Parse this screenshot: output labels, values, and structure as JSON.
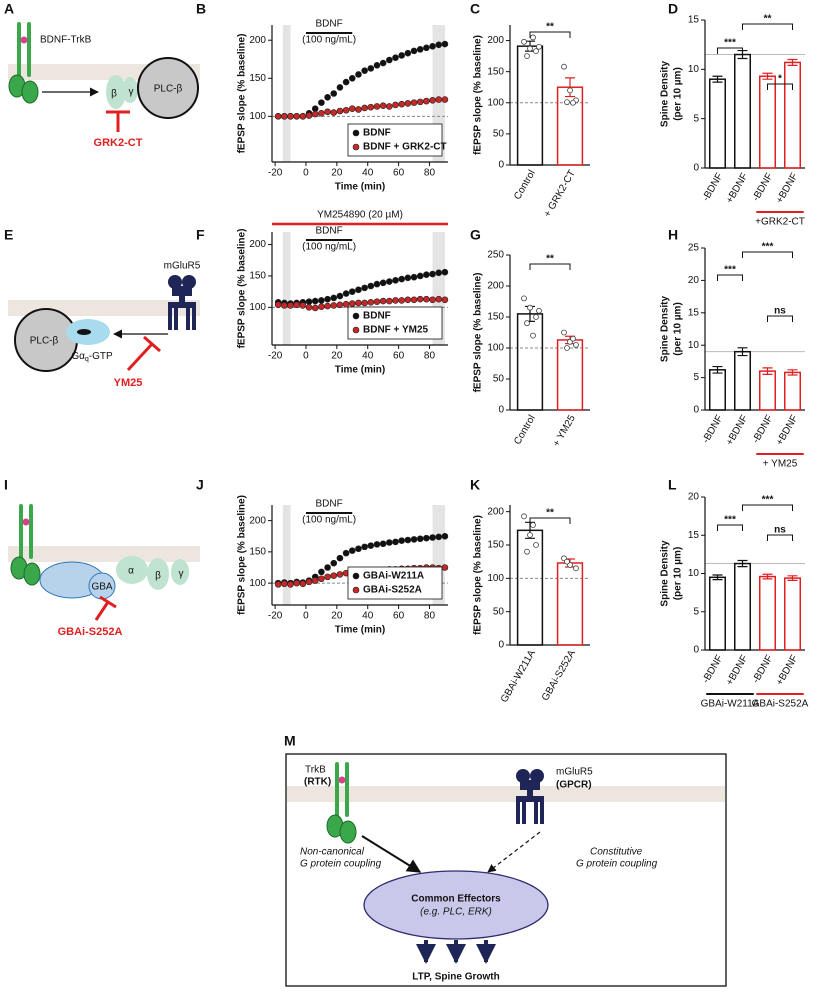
{
  "diagrams": {
    "A": {
      "panel": "A",
      "receptor": "BDNF-TrkB",
      "beta": "β",
      "gamma": "γ",
      "effector": "PLC-β",
      "inhibitor": "GRK2-CT"
    },
    "E": {
      "panel": "E",
      "receptor": "mGluR5",
      "effector": "PLC-β",
      "g_protein": "Gα",
      "g_protein_sub": "q",
      "g_protein_suffix": "-GTP",
      "inhibitor": "YM25"
    },
    "I": {
      "panel": "I",
      "alpha": "α",
      "beta": "β",
      "gamma": "γ",
      "gba": "GBA",
      "inhibitor": "GBAi-S252A"
    },
    "M": {
      "panel": "M",
      "rtk_name": "TrkB",
      "rtk_class": "(RTK)",
      "gpcr_name": "mGluR5",
      "gpcr_class": "(GPCR)",
      "left_path": [
        "Non-canonical",
        "G protein coupling"
      ],
      "right_path": [
        "Constitutive",
        "G protein coupling"
      ],
      "effectors": "Common Effectors",
      "effectors_example": "(e.g. PLC, ERK)",
      "outcome": "LTP, Spine Growth"
    }
  },
  "chart_data": [
    {
      "type": "scatter",
      "panel": "B",
      "annotation": "BDNF",
      "annotation2": "(100 ng/mL)",
      "drug_bar": [
        0,
        30
      ],
      "shaded_x": [
        [
          -15,
          -10
        ],
        [
          82,
          90
        ]
      ],
      "ref_line": 100,
      "xlabel": "Time (min)",
      "ylabel": "fEPSP slope (% baseline)",
      "xlim": [
        -22,
        92
      ],
      "xticks": [
        -20,
        0,
        20,
        40,
        60,
        80
      ],
      "ylim": [
        40,
        220
      ],
      "yticks": [
        100,
        150,
        200
      ],
      "legend": "lower right",
      "x": [
        -18,
        -14,
        -10,
        -6,
        -2,
        2,
        6,
        10,
        14,
        18,
        22,
        26,
        30,
        34,
        38,
        42,
        46,
        50,
        54,
        58,
        62,
        66,
        70,
        74,
        78,
        82,
        86,
        90
      ],
      "series": [
        {
          "name": "BDNF",
          "color": "#111111",
          "values": [
            100,
            100,
            100,
            100,
            100,
            104,
            110,
            118,
            125,
            130,
            138,
            145,
            150,
            155,
            160,
            163,
            167,
            170,
            174,
            177,
            180,
            183,
            186,
            188,
            190,
            192,
            194,
            195
          ]
        },
        {
          "name": "BDNF + GRK2-CT",
          "color": "#c62828",
          "values": [
            100,
            100,
            100,
            100,
            100,
            101,
            103,
            104,
            106,
            105,
            107,
            108,
            110,
            109,
            111,
            112,
            113,
            114,
            113,
            115,
            116,
            117,
            118,
            119,
            120,
            121,
            122,
            122
          ]
        }
      ]
    },
    {
      "type": "bar",
      "panel": "C",
      "categories": [
        "Control",
        "+ GRK2-CT"
      ],
      "values": [
        191,
        125
      ],
      "errors": [
        8,
        15
      ],
      "points": [
        [
          198,
          187,
          183,
          175,
          205,
          190
        ],
        [
          158,
          120,
          104,
          101,
          100
        ]
      ],
      "colors": [
        "#111111",
        "#e02020"
      ],
      "ylabel": [
        "fEPSP slope (% baseline)"
      ],
      "ylim": [
        0,
        225
      ],
      "yticks": [
        0,
        50,
        100,
        150,
        200
      ],
      "ref_line": 100,
      "significance": [
        "**"
      ]
    },
    {
      "type": "bar",
      "panel": "D",
      "categories": [
        "-BDNF",
        "+BDNF",
        "-BDNF",
        "+BDNF"
      ],
      "values": [
        9.0,
        11.5,
        9.3,
        10.7
      ],
      "errors": [
        0.3,
        0.4,
        0.3,
        0.3
      ],
      "colors": [
        "#111111",
        "#111111",
        "#e02020",
        "#e02020"
      ],
      "ylabel": [
        "Spine Density",
        "(per 10 µm)"
      ],
      "ylim": [
        0,
        15
      ],
      "yticks": [
        0,
        5,
        10,
        15
      ],
      "ref_line": 11.5,
      "significance": [
        "***",
        "**",
        "*"
      ],
      "group_labels": [
        "+GRK2-CT"
      ]
    },
    {
      "type": "scatter",
      "panel": "F",
      "annotation": "BDNF",
      "annotation2": "(100 ng/mL)",
      "drug_bar": [
        0,
        30
      ],
      "shaded_x": [
        [
          -15,
          -10
        ],
        [
          82,
          90
        ]
      ],
      "ref_line": 100,
      "top_bar": {
        "label": "YM254890  (20 µM)",
        "range": [
          -22,
          92
        ],
        "color": "#e02020"
      },
      "xlabel": "Time (min)",
      "ylabel": "fEPSP slope (% baseline)",
      "xlim": [
        -22,
        92
      ],
      "xticks": [
        -20,
        0,
        20,
        40,
        60,
        80
      ],
      "ylim": [
        40,
        220
      ],
      "yticks": [
        100,
        150,
        200
      ],
      "legend": "lower right",
      "x": [
        -18,
        -14,
        -10,
        -6,
        -2,
        2,
        6,
        10,
        14,
        18,
        22,
        26,
        30,
        34,
        38,
        42,
        46,
        50,
        54,
        58,
        62,
        66,
        70,
        74,
        78,
        82,
        86,
        90
      ],
      "series": [
        {
          "name": "BDNF",
          "color": "#111111",
          "values": [
            108,
            107,
            106,
            107,
            108,
            109,
            110,
            111,
            113,
            115,
            118,
            122,
            125,
            128,
            131,
            134,
            137,
            139,
            141,
            143,
            145,
            147,
            148,
            150,
            152,
            153,
            155,
            156
          ]
        },
        {
          "name": "BDNF + YM25",
          "color": "#c62828",
          "values": [
            104,
            103,
            103,
            104,
            103,
            100,
            99,
            101,
            102,
            103,
            104,
            105,
            106,
            107,
            107,
            108,
            109,
            110,
            110,
            111,
            111,
            112,
            112,
            113,
            113,
            112,
            113,
            112
          ]
        }
      ]
    },
    {
      "type": "bar",
      "panel": "G",
      "categories": [
        "Control",
        "+ YM25"
      ],
      "values": [
        155,
        113
      ],
      "errors": [
        12,
        6
      ],
      "points": [
        [
          180,
          165,
          150,
          140,
          120,
          160
        ],
        [
          125,
          110,
          105,
          100,
          115
        ]
      ],
      "colors": [
        "#111111",
        "#e02020"
      ],
      "ylabel": [
        "fEPSP slope (% baseline)"
      ],
      "ylim": [
        0,
        250
      ],
      "yticks": [
        0,
        50,
        100,
        150,
        200,
        250
      ],
      "ref_line": 100,
      "significance": [
        "**"
      ]
    },
    {
      "type": "bar",
      "panel": "H",
      "categories": [
        "-BDNF",
        "+BDNF",
        "-BDNF",
        "+BDNF"
      ],
      "values": [
        6.2,
        9.0,
        6.0,
        5.8
      ],
      "errors": [
        0.5,
        0.6,
        0.5,
        0.4
      ],
      "colors": [
        "#111111",
        "#111111",
        "#e02020",
        "#e02020"
      ],
      "ylabel": [
        "Spine Density",
        "(per 10 µm)"
      ],
      "ylim": [
        0,
        25
      ],
      "yticks": [
        0,
        5,
        10,
        15,
        20,
        25
      ],
      "ref_line": 9,
      "significance": [
        "***",
        "***",
        "ns"
      ],
      "group_labels": [
        "+ YM25"
      ]
    },
    {
      "type": "scatter",
      "panel": "J",
      "annotation": "BDNF",
      "annotation2": "(100 ng/mL)",
      "drug_bar": [
        0,
        30
      ],
      "shaded_x": [
        [
          -15,
          -10
        ],
        [
          82,
          90
        ]
      ],
      "ref_line": 100,
      "xlabel": "Time (min)",
      "ylabel": "fEPSP slope (% baseline)",
      "xlim": [
        -22,
        92
      ],
      "xticks": [
        -20,
        0,
        20,
        40,
        60,
        80
      ],
      "ylim": [
        65,
        225
      ],
      "yticks": [
        100,
        150,
        200
      ],
      "legend": "lower right",
      "x": [
        -18,
        -14,
        -10,
        -6,
        -2,
        2,
        6,
        10,
        14,
        18,
        22,
        26,
        30,
        34,
        38,
        42,
        46,
        50,
        54,
        58,
        62,
        66,
        70,
        74,
        78,
        82,
        86,
        90
      ],
      "series": [
        {
          "name": "GBAi-W211A",
          "color": "#111111",
          "values": [
            100,
            101,
            100,
            102,
            101,
            104,
            110,
            118,
            125,
            132,
            140,
            148,
            152,
            155,
            158,
            160,
            162,
            163,
            165,
            166,
            168,
            169,
            170,
            171,
            172,
            173,
            174,
            175
          ]
        },
        {
          "name": "GBAi-S252A",
          "color": "#c62828",
          "values": [
            98,
            99,
            98,
            100,
            99,
            102,
            104,
            107,
            110,
            112,
            114,
            116,
            117,
            118,
            119,
            120,
            120,
            121,
            122,
            122,
            123,
            123,
            124,
            124,
            125,
            125,
            124,
            125
          ]
        }
      ]
    },
    {
      "type": "bar",
      "panel": "K",
      "categories": [
        "GBAi-W211A",
        "GBAi-S252A"
      ],
      "values": [
        172,
        123
      ],
      "errors": [
        12,
        6
      ],
      "points": [
        [
          193,
          165,
          150,
          140,
          180
        ],
        [
          130,
          120,
          115,
          125
        ]
      ],
      "colors": [
        "#111111",
        "#e02020"
      ],
      "ylabel": [
        "fEPSP slope (% baseline)"
      ],
      "ylim": [
        0,
        210
      ],
      "yticks": [
        0,
        50,
        100,
        150,
        200
      ],
      "ref_line": 100,
      "significance": [
        "**"
      ]
    },
    {
      "type": "bar",
      "panel": "L",
      "categories": [
        "-BDNF",
        "+BDNF",
        "-BDNF",
        "+BDNF"
      ],
      "values": [
        9.5,
        11.3,
        9.6,
        9.4
      ],
      "errors": [
        0.3,
        0.4,
        0.3,
        0.3
      ],
      "colors": [
        "#111111",
        "#111111",
        "#e02020",
        "#e02020"
      ],
      "ylabel": [
        "Spine Density",
        "(per 10 µm)"
      ],
      "ylim": [
        0,
        20
      ],
      "yticks": [
        0,
        5,
        10,
        15,
        20
      ],
      "ref_line": 11.3,
      "significance": [
        "***",
        "***",
        "ns"
      ],
      "group_labels": [
        "GBAi-W211A",
        "GBAi-S252A"
      ]
    }
  ]
}
